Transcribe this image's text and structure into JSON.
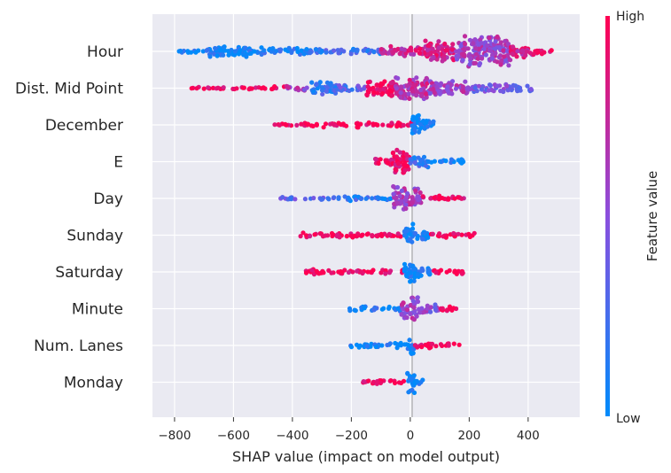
{
  "chart_data": {
    "type": "scatter",
    "subtype": "shap-beeswarm",
    "xlabel": "SHAP value (impact on model output)",
    "xlim": [
      -875,
      575
    ],
    "xticks": [
      -800,
      -600,
      -400,
      -200,
      0,
      200,
      400
    ],
    "xtick_labels": [
      "−800",
      "−600",
      "−400",
      "−200",
      "0",
      "200",
      "400"
    ],
    "grid": true,
    "colorbar": {
      "title": "Feature value",
      "high_label": "High",
      "low_label": "Low",
      "low_color": "#008bfb",
      "high_color": "#ff0052"
    },
    "features": [
      {
        "name": "Hour",
        "min": -795,
        "max": 480,
        "segments": [
          {
            "from": -795,
            "to": -700,
            "half_width": 2,
            "value": 0.05
          },
          {
            "from": -700,
            "to": -500,
            "half_width": 7,
            "value": 0.05
          },
          {
            "from": -500,
            "to": -300,
            "half_width": 4,
            "value": 0.12
          },
          {
            "from": -300,
            "to": -100,
            "half_width": 3,
            "value": 0.2
          },
          {
            "from": -100,
            "to": 50,
            "half_width": 6,
            "value": 0.8
          },
          {
            "from": 50,
            "to": 150,
            "half_width": 14,
            "value": 0.8
          },
          {
            "from": 150,
            "to": 340,
            "half_width": 19,
            "value": 0.6
          },
          {
            "from": 340,
            "to": 420,
            "half_width": 8,
            "value": 0.8
          },
          {
            "from": 420,
            "to": 480,
            "half_width": 3,
            "value": 0.9
          }
        ]
      },
      {
        "name": "Dist. Mid Point",
        "min": -760,
        "max": 420,
        "segments": [
          {
            "from": -760,
            "to": -620,
            "half_width": 2,
            "value": 0.95
          },
          {
            "from": -620,
            "to": -420,
            "half_width": 2,
            "value": 0.95
          },
          {
            "from": -420,
            "to": -340,
            "half_width": 3,
            "value": 0.6
          },
          {
            "from": -340,
            "to": -250,
            "half_width": 8,
            "value": 0.2
          },
          {
            "from": -250,
            "to": -150,
            "half_width": 4,
            "value": 0.3
          },
          {
            "from": -150,
            "to": -50,
            "half_width": 11,
            "value": 0.95
          },
          {
            "from": -50,
            "to": 60,
            "half_width": 15,
            "value": 0.7
          },
          {
            "from": 60,
            "to": 200,
            "half_width": 9,
            "value": 0.6
          },
          {
            "from": 200,
            "to": 420,
            "half_width": 5,
            "value": 0.4
          }
        ]
      },
      {
        "name": "December",
        "min": -460,
        "max": 80,
        "segments": [
          {
            "from": -460,
            "to": -380,
            "half_width": 1.5,
            "value": 0.97
          },
          {
            "from": -380,
            "to": 5,
            "half_width": 3,
            "value": 0.97
          },
          {
            "from": 5,
            "to": 30,
            "half_width": 16,
            "value": 0.03
          },
          {
            "from": 30,
            "to": 80,
            "half_width": 8,
            "value": 0.03
          }
        ]
      },
      {
        "name": "E",
        "min": -120,
        "max": 180,
        "segments": [
          {
            "from": -120,
            "to": -60,
            "half_width": 5,
            "value": 0.95
          },
          {
            "from": -60,
            "to": 0,
            "half_width": 15,
            "value": 0.95
          },
          {
            "from": 0,
            "to": 60,
            "half_width": 8,
            "value": 0.2
          },
          {
            "from": 60,
            "to": 180,
            "half_width": 3,
            "value": 0.05
          }
        ]
      },
      {
        "name": "Day",
        "min": -440,
        "max": 185,
        "segments": [
          {
            "from": -440,
            "to": -250,
            "half_width": 2,
            "value": 0.35
          },
          {
            "from": -250,
            "to": -60,
            "half_width": 3,
            "value": 0.15
          },
          {
            "from": -60,
            "to": 40,
            "half_width": 14,
            "value": 0.6
          },
          {
            "from": 40,
            "to": 185,
            "half_width": 3,
            "value": 0.9
          }
        ]
      },
      {
        "name": "Sunday",
        "min": -385,
        "max": 220,
        "segments": [
          {
            "from": -385,
            "to": -20,
            "half_width": 3,
            "value": 0.97
          },
          {
            "from": -20,
            "to": 15,
            "half_width": 14,
            "value": 0.03
          },
          {
            "from": 15,
            "to": 70,
            "half_width": 6,
            "value": 0.05
          },
          {
            "from": 70,
            "to": 220,
            "half_width": 3,
            "value": 0.97
          }
        ]
      },
      {
        "name": "Saturday",
        "min": -355,
        "max": 185,
        "segments": [
          {
            "from": -355,
            "to": -20,
            "half_width": 3,
            "value": 0.97
          },
          {
            "from": -20,
            "to": 20,
            "half_width": 14,
            "value": 0.03
          },
          {
            "from": 20,
            "to": 70,
            "half_width": 6,
            "value": 0.05
          },
          {
            "from": 70,
            "to": 185,
            "half_width": 3,
            "value": 0.97
          }
        ]
      },
      {
        "name": "Minute",
        "min": -210,
        "max": 170,
        "segments": [
          {
            "from": -210,
            "to": -30,
            "half_width": 3,
            "value": 0.1
          },
          {
            "from": -30,
            "to": 30,
            "half_width": 14,
            "value": 0.6
          },
          {
            "from": 30,
            "to": 100,
            "half_width": 5,
            "value": 0.5
          },
          {
            "from": 100,
            "to": 170,
            "half_width": 3,
            "value": 0.95
          }
        ]
      },
      {
        "name": "Num. Lanes",
        "min": -205,
        "max": 170,
        "segments": [
          {
            "from": -205,
            "to": -10,
            "half_width": 3,
            "value": 0.05
          },
          {
            "from": -10,
            "to": 12,
            "half_width": 13,
            "value": 0.05
          },
          {
            "from": 12,
            "to": 170,
            "half_width": 3,
            "value": 0.97
          }
        ]
      },
      {
        "name": "Monday",
        "min": -160,
        "max": 45,
        "segments": [
          {
            "from": -160,
            "to": -10,
            "half_width": 3,
            "value": 0.97
          },
          {
            "from": -10,
            "to": 15,
            "half_width": 14,
            "value": 0.03
          },
          {
            "from": 15,
            "to": 45,
            "half_width": 4,
            "value": 0.03
          }
        ]
      }
    ]
  }
}
